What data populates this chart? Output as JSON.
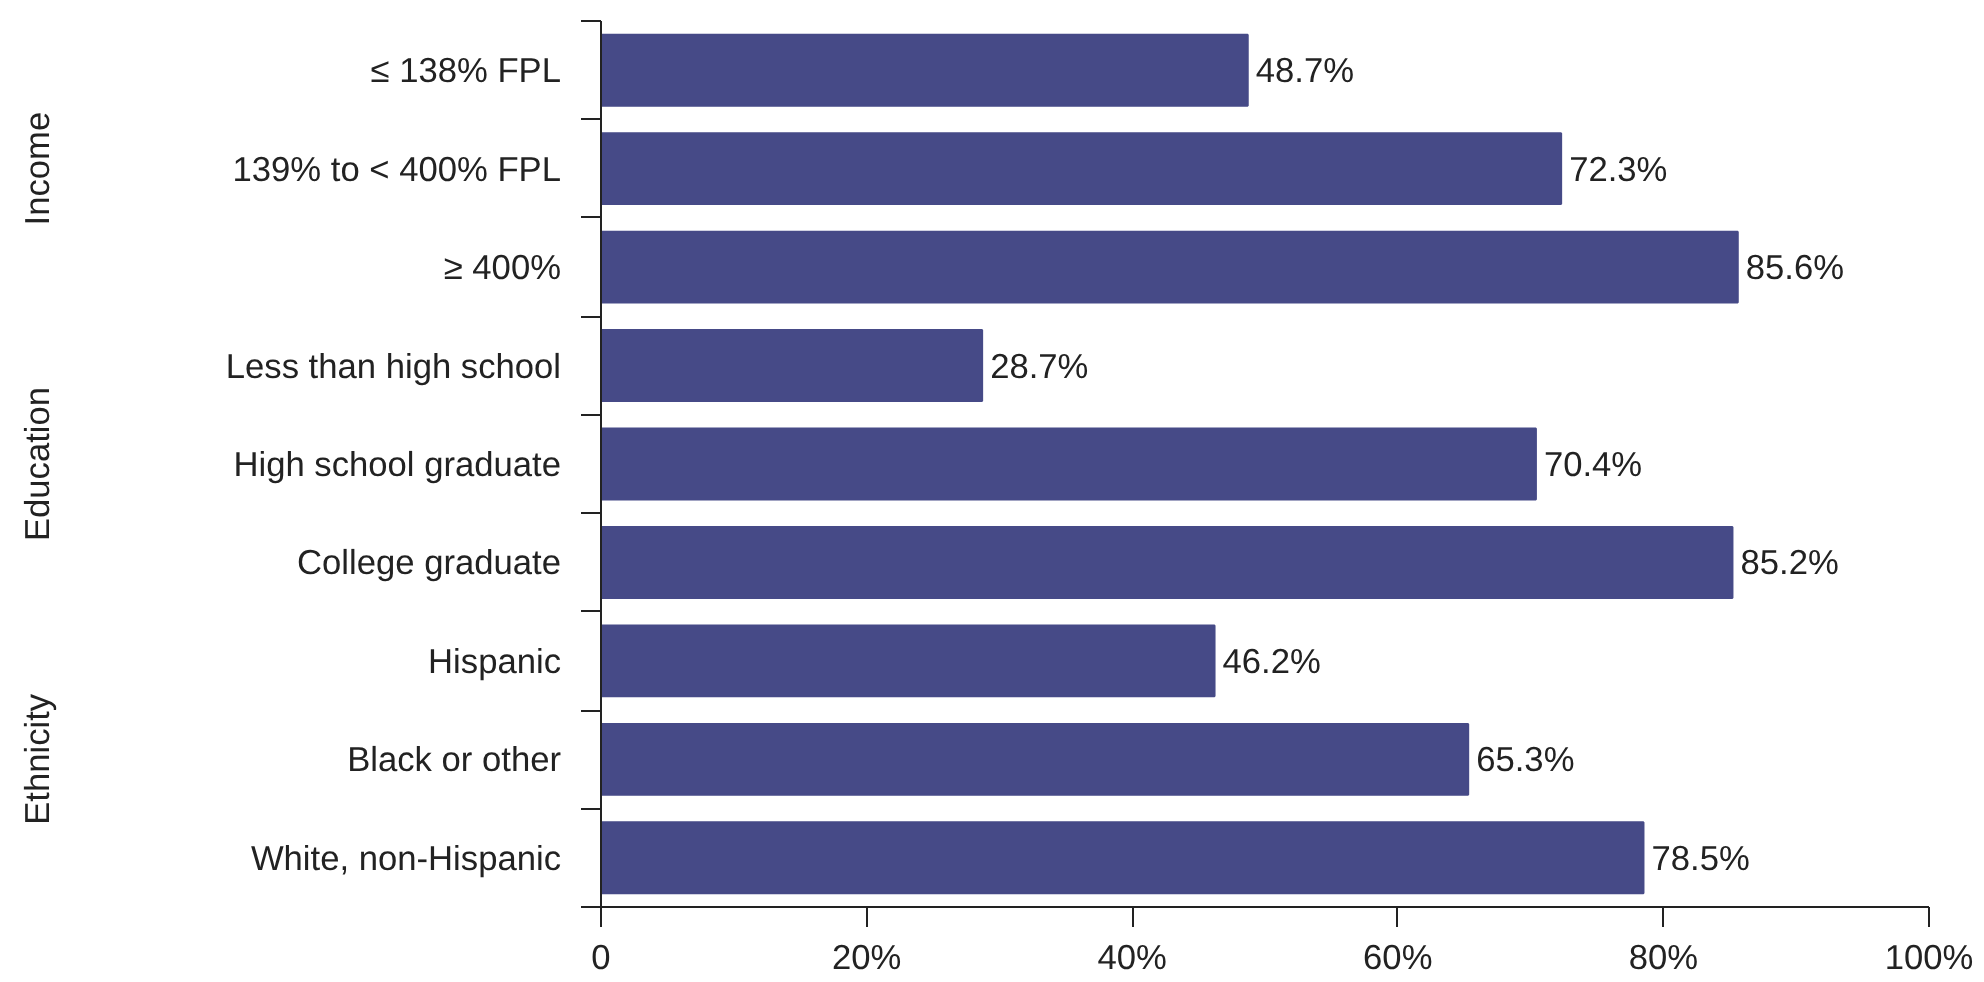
{
  "chart_data": {
    "type": "bar",
    "orientation": "horizontal",
    "categories": [
      "≤ 138% FPL",
      "139% to < 400% FPL",
      "≥ 400%",
      "Less than high school",
      "High school graduate",
      "College graduate",
      "Hispanic",
      "Black or other",
      "White, non-Hispanic"
    ],
    "values": [
      48.7,
      72.3,
      85.6,
      28.7,
      70.4,
      85.2,
      46.2,
      65.3,
      78.5
    ],
    "value_labels": [
      "48.7%",
      "72.3%",
      "85.6%",
      "28.7%",
      "70.4%",
      "85.2%",
      "46.2%",
      "65.3%",
      "78.5%"
    ],
    "color": "#464a87",
    "xlim": [
      0,
      100
    ],
    "xticks": [
      0,
      {
        "value": 20,
        "label": "20%"
      },
      {
        "value": 40,
        "label": "40%"
      },
      {
        "value": 60,
        "label": "60%"
      },
      {
        "value": 80,
        "label": "80%"
      },
      {
        "value": 100,
        "label": "100%"
      }
    ],
    "annotations": [
      "Income",
      "Education",
      "Ethnicity"
    ],
    "grid": false
  }
}
